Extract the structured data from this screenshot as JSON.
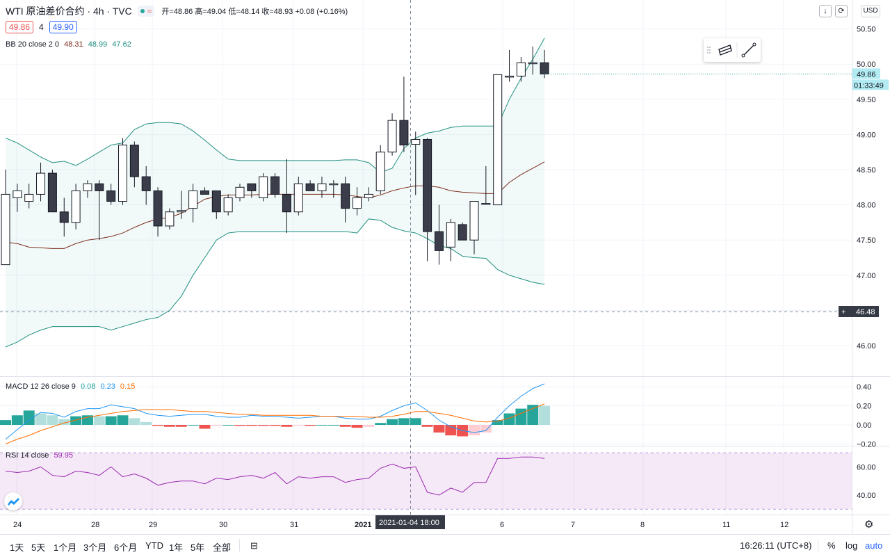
{
  "header": {
    "symbol": "WTI 原油差价合约 · 4h · TVC",
    "approx_icon": "≈",
    "ohlc": "开=48.86 高=49.04 低=48.14 收=48.93 +0.08 (+0.16%)",
    "bid": "49.86",
    "spread": "4",
    "ask": "49.90",
    "currency": "USD"
  },
  "indicators": {
    "bb": {
      "label": "BB 20 close 2 0",
      "v1": "48.31",
      "v2": "48.99",
      "v3": "47.62"
    },
    "macd": {
      "label": "MACD 12 26 close 9",
      "v1": "0.08",
      "v2": "0.23",
      "v3": "0.15"
    },
    "rsi": {
      "label": "RSI 14 close",
      "v1": "59.95"
    }
  },
  "price_axis": {
    "ticks": [
      "50.50",
      "50.00",
      "49.50",
      "49.00",
      "48.50",
      "48.00",
      "47.50",
      "47.00",
      "46.00"
    ],
    "last_price": "49.86",
    "countdown": "01:33:49",
    "crosshair_price": "46.48"
  },
  "macd_axis": {
    "ticks": [
      "0.40",
      "0.20",
      "0.00",
      "−0.20"
    ]
  },
  "rsi_axis": {
    "ticks": [
      "60.00",
      "40.00"
    ]
  },
  "time_axis": {
    "labels": [
      "24",
      "28",
      "29",
      "30",
      "31",
      "2021",
      "6",
      "7",
      "8",
      "11",
      "12"
    ],
    "crosshair_label": "2021-01-04   18:00"
  },
  "bottom_bar": {
    "timeframes": [
      "1天",
      "5天",
      "1个月",
      "3个月",
      "6个月",
      "YTD",
      "1年",
      "5年",
      "全部"
    ],
    "clock": "16:26:11 (UTC+8)",
    "percent": "%",
    "log": "log",
    "auto": "auto"
  },
  "colors": {
    "up": "#ffffff",
    "down": "#3b3d4a",
    "bb_band": "#1e8f7f",
    "bb_basis": "#7b2c1e",
    "macd_line": "#2196f3",
    "signal_line": "#ff6d00",
    "rsi_line": "#9c27b0",
    "hist_pos_strong": "#26a69a",
    "hist_pos_weak": "#b2dfdb",
    "hist_neg_strong": "#ef5350",
    "hist_neg_weak": "#ffcdd2"
  },
  "icons": {
    "down_arrow": "arrow-down-icon",
    "refresh": "refresh-icon",
    "drawing_tool_1": "parallel-channel-icon",
    "drawing_tool_2": "trend-line-icon",
    "logo": "tradingview-logo-icon",
    "settings": "gear-icon",
    "compare": "compare-icon"
  },
  "chart_data": {
    "type": "candlestick",
    "price_range": [
      45.6,
      50.7
    ],
    "candles": [
      {
        "o": 47.15,
        "h": 48.5,
        "l": 47.15,
        "c": 48.15
      },
      {
        "o": 48.1,
        "h": 48.3,
        "l": 47.9,
        "c": 48.2
      },
      {
        "o": 48.05,
        "h": 48.3,
        "l": 47.95,
        "c": 48.15
      },
      {
        "o": 48.15,
        "h": 48.6,
        "l": 48.05,
        "c": 48.45
      },
      {
        "o": 48.45,
        "h": 48.5,
        "l": 47.9,
        "c": 47.9
      },
      {
        "o": 47.9,
        "h": 48.1,
        "l": 47.55,
        "c": 47.75
      },
      {
        "o": 47.75,
        "h": 48.3,
        "l": 47.65,
        "c": 48.2
      },
      {
        "o": 48.2,
        "h": 48.35,
        "l": 48.1,
        "c": 48.3
      },
      {
        "o": 48.3,
        "h": 48.35,
        "l": 47.5,
        "c": 48.2
      },
      {
        "o": 48.2,
        "h": 48.3,
        "l": 48.0,
        "c": 48.05
      },
      {
        "o": 48.05,
        "h": 48.95,
        "l": 48.0,
        "c": 48.85
      },
      {
        "o": 48.85,
        "h": 48.9,
        "l": 48.25,
        "c": 48.4
      },
      {
        "o": 48.4,
        "h": 48.55,
        "l": 48.0,
        "c": 48.2
      },
      {
        "o": 48.2,
        "h": 48.25,
        "l": 47.55,
        "c": 47.7
      },
      {
        "o": 47.7,
        "h": 47.95,
        "l": 47.65,
        "c": 47.9
      },
      {
        "o": 47.9,
        "h": 48.2,
        "l": 47.8,
        "c": 47.92
      },
      {
        "o": 47.95,
        "h": 48.3,
        "l": 47.75,
        "c": 48.2
      },
      {
        "o": 48.2,
        "h": 48.25,
        "l": 48.15,
        "c": 48.15
      },
      {
        "o": 48.2,
        "h": 48.2,
        "l": 47.8,
        "c": 47.9
      },
      {
        "o": 47.9,
        "h": 48.15,
        "l": 47.85,
        "c": 48.1
      },
      {
        "o": 48.1,
        "h": 48.3,
        "l": 48.05,
        "c": 48.25
      },
      {
        "o": 48.3,
        "h": 48.3,
        "l": 48.1,
        "c": 48.2
      },
      {
        "o": 48.1,
        "h": 48.45,
        "l": 48.05,
        "c": 48.4
      },
      {
        "o": 48.4,
        "h": 48.45,
        "l": 48.1,
        "c": 48.15
      },
      {
        "o": 48.15,
        "h": 48.65,
        "l": 47.6,
        "c": 47.9
      },
      {
        "o": 47.9,
        "h": 48.4,
        "l": 47.85,
        "c": 48.3
      },
      {
        "o": 48.3,
        "h": 48.35,
        "l": 48.2,
        "c": 48.2
      },
      {
        "o": 48.2,
        "h": 48.4,
        "l": 48.1,
        "c": 48.3
      },
      {
        "o": 48.3,
        "h": 48.35,
        "l": 48.1,
        "c": 48.3
      },
      {
        "o": 48.3,
        "h": 48.4,
        "l": 47.75,
        "c": 47.95
      },
      {
        "o": 47.95,
        "h": 48.25,
        "l": 47.85,
        "c": 48.1
      },
      {
        "o": 48.1,
        "h": 48.25,
        "l": 48.05,
        "c": 48.15
      },
      {
        "o": 48.2,
        "h": 48.85,
        "l": 48.15,
        "c": 48.75
      },
      {
        "o": 48.75,
        "h": 49.3,
        "l": 48.7,
        "c": 49.2
      },
      {
        "o": 49.2,
        "h": 49.82,
        "l": 48.75,
        "c": 48.85
      },
      {
        "o": 48.86,
        "h": 49.04,
        "l": 48.14,
        "c": 48.93
      },
      {
        "o": 48.93,
        "h": 48.95,
        "l": 47.2,
        "c": 47.62
      },
      {
        "o": 47.62,
        "h": 48.0,
        "l": 47.15,
        "c": 47.35
      },
      {
        "o": 47.4,
        "h": 47.8,
        "l": 47.2,
        "c": 47.75
      },
      {
        "o": 47.72,
        "h": 47.75,
        "l": 47.5,
        "c": 47.5
      },
      {
        "o": 47.5,
        "h": 48.05,
        "l": 47.3,
        "c": 48.05
      },
      {
        "o": 48.02,
        "h": 48.55,
        "l": 48.0,
        "c": 48.02
      },
      {
        "o": 48.0,
        "h": 49.85,
        "l": 48.0,
        "c": 49.85
      },
      {
        "o": 49.83,
        "h": 50.2,
        "l": 49.75,
        "c": 49.83
      },
      {
        "o": 49.83,
        "h": 50.1,
        "l": 49.75,
        "c": 50.02
      },
      {
        "o": 50.02,
        "h": 50.25,
        "l": 49.85,
        "c": 50.02
      },
      {
        "o": 50.02,
        "h": 50.2,
        "l": 49.8,
        "c": 49.86
      }
    ],
    "bb_upper": [
      48.95,
      48.88,
      48.78,
      48.68,
      48.6,
      48.62,
      48.56,
      48.65,
      48.75,
      48.85,
      48.88,
      49.07,
      49.15,
      49.17,
      49.17,
      49.15,
      49.05,
      48.92,
      48.78,
      48.65,
      48.63,
      48.63,
      48.63,
      48.63,
      48.63,
      48.63,
      48.63,
      48.63,
      48.63,
      48.64,
      48.64,
      48.6,
      48.46,
      48.52,
      48.8,
      48.95,
      49.02,
      49.05,
      49.1,
      49.12,
      49.12,
      49.12,
      49.12,
      49.5,
      49.8,
      50.07,
      50.37
    ],
    "bb_lower": [
      45.98,
      46.05,
      46.15,
      46.22,
      46.27,
      46.27,
      46.27,
      46.27,
      46.27,
      46.22,
      46.27,
      46.32,
      46.37,
      46.4,
      46.5,
      46.7,
      47.0,
      47.25,
      47.5,
      47.6,
      47.62,
      47.62,
      47.62,
      47.62,
      47.62,
      47.62,
      47.62,
      47.62,
      47.62,
      47.62,
      47.6,
      47.8,
      47.78,
      47.68,
      47.63,
      47.6,
      47.52,
      47.42,
      47.38,
      47.27,
      47.25,
      47.24,
      47.08,
      47.0,
      46.95,
      46.9,
      46.87
    ],
    "bb_basis": [
      47.47,
      47.45,
      47.4,
      47.39,
      47.38,
      47.38,
      47.45,
      47.5,
      47.52,
      47.55,
      47.6,
      47.68,
      47.75,
      47.8,
      47.82,
      47.88,
      47.98,
      48.08,
      48.12,
      48.14,
      48.14,
      48.14,
      48.15,
      48.15,
      48.15,
      48.15,
      48.15,
      48.15,
      48.15,
      48.14,
      48.12,
      48.1,
      48.14,
      48.2,
      48.24,
      48.27,
      48.27,
      48.25,
      48.2,
      48.18,
      48.17,
      48.16,
      48.16,
      48.32,
      48.43,
      48.52,
      48.61
    ],
    "macd": {
      "range": [
        -0.22,
        0.46
      ],
      "macd_line": [
        -0.15,
        -0.05,
        0.05,
        0.13,
        0.12,
        0.08,
        0.14,
        0.17,
        0.17,
        0.21,
        0.19,
        0.17,
        0.12,
        0.1,
        0.09,
        0.1,
        0.11,
        0.11,
        0.09,
        0.08,
        0.08,
        0.1,
        0.09,
        0.09,
        0.08,
        0.07,
        0.08,
        0.09,
        0.09,
        0.07,
        0.06,
        0.06,
        0.09,
        0.15,
        0.2,
        0.23,
        0.15,
        0.05,
        -0.02,
        -0.06,
        -0.08,
        -0.06,
        0.08,
        0.2,
        0.3,
        0.38,
        0.43
      ],
      "signal_line": [
        -0.2,
        -0.15,
        -0.11,
        -0.06,
        -0.02,
        0.02,
        0.05,
        0.08,
        0.1,
        0.12,
        0.14,
        0.15,
        0.16,
        0.16,
        0.16,
        0.15,
        0.14,
        0.14,
        0.13,
        0.12,
        0.11,
        0.11,
        0.1,
        0.1,
        0.1,
        0.1,
        0.1,
        0.09,
        0.09,
        0.09,
        0.09,
        0.08,
        0.08,
        0.09,
        0.11,
        0.14,
        0.14,
        0.12,
        0.1,
        0.07,
        0.04,
        0.03,
        0.04,
        0.07,
        0.12,
        0.17,
        0.22
      ],
      "histogram": [
        0.05,
        0.1,
        0.15,
        0.12,
        0.1,
        0.06,
        0.09,
        0.1,
        0.09,
        0.09,
        0.1,
        0.07,
        0.03,
        -0.01,
        -0.02,
        -0.02,
        0.0,
        -0.04,
        -0.01,
        0.0,
        -0.01,
        -0.01,
        -0.01,
        -0.01,
        -0.02,
        -0.01,
        -0.01,
        0.0,
        0.0,
        -0.02,
        -0.03,
        -0.02,
        0.02,
        0.06,
        0.07,
        0.07,
        -0.02,
        -0.08,
        -0.11,
        -0.12,
        -0.11,
        -0.08,
        0.05,
        0.12,
        0.17,
        0.21,
        0.2
      ]
    },
    "rsi": {
      "range": [
        31,
        70
      ],
      "upper_band": 70,
      "lower_band": 30,
      "values": [
        57,
        56,
        57,
        60,
        54,
        53,
        57,
        56,
        54,
        60,
        53,
        55,
        52,
        47,
        49,
        50,
        50,
        48,
        52,
        51,
        53,
        54,
        52,
        56,
        48,
        53,
        52,
        53,
        53,
        49,
        51,
        52,
        59,
        62,
        59,
        60,
        42,
        40,
        45,
        42,
        49,
        49,
        66,
        66,
        67,
        67,
        66
      ]
    }
  }
}
